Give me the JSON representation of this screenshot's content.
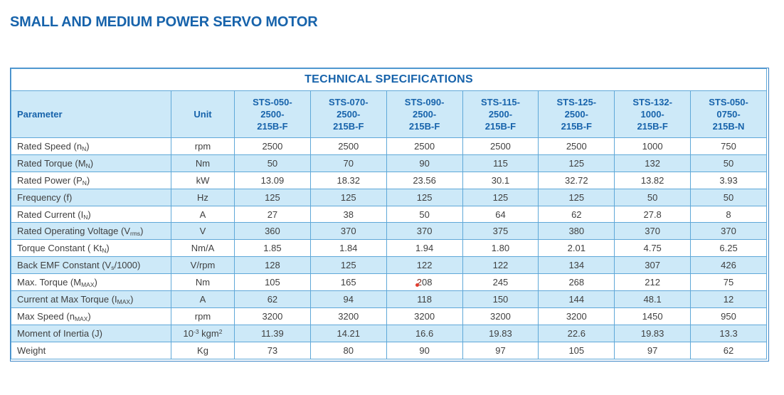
{
  "page_title": "SMALL AND MEDIUM POWER SERVO MOTOR",
  "colors": {
    "accent_blue": "#1763ab",
    "band_blue": "#cde9f8",
    "grid_blue": "#5fa8d8",
    "outer_border_blue": "#3d85c6",
    "body_text": "#3f3f3f",
    "red_mark": "#e23b2e"
  },
  "table": {
    "title": "TECHNICAL SPECIFICATIONS",
    "param_header": "Parameter",
    "unit_header": "Unit",
    "model_headers": [
      "STS-050-\n2500-\n215B-F",
      "STS-070-\n2500-\n215B-F",
      "STS-090-\n2500-\n215B-F",
      "STS-115-\n2500-\n215B-F",
      "STS-125-\n2500-\n215B-F",
      "STS-132-\n1000-\n215B-F",
      "STS-050-\n0750-\n215B-N"
    ],
    "rows": [
      {
        "param": "Rated Speed (n~N~)",
        "unit": "rpm",
        "values": [
          "2500",
          "2500",
          "2500",
          "2500",
          "2500",
          "1000",
          "750"
        ]
      },
      {
        "param": "Rated Torque (M~N~)",
        "unit": "Nm",
        "values": [
          "50",
          "70",
          "90",
          "115",
          "125",
          "132",
          "50"
        ]
      },
      {
        "param": "Rated Power (P~N~)",
        "unit": "kW",
        "values": [
          "13.09",
          "18.32",
          "23.56",
          "30.1",
          "32.72",
          "13.82",
          "3.93"
        ]
      },
      {
        "param": "Frequency (f)",
        "unit": "Hz",
        "values": [
          "125",
          "125",
          "125",
          "125",
          "125",
          "50",
          "50"
        ]
      },
      {
        "param": "Rated Current (I~N~)",
        "unit": "A",
        "values": [
          "27",
          "38",
          "50",
          "64",
          "62",
          "27.8",
          "8"
        ]
      },
      {
        "param": "Rated Operating Voltage (V~rms~)",
        "unit": "V",
        "values": [
          "360",
          "370",
          "370",
          "375",
          "380",
          "370",
          "370"
        ]
      },
      {
        "param": "Torque Constant ( Kt~N~)",
        "unit": "Nm/A",
        "values": [
          "1.85",
          "1.84",
          "1.94",
          "1.80",
          "2.01",
          "4.75",
          "6.25"
        ]
      },
      {
        "param": "Back EMF Constant (V~s~/1000)",
        "unit": "V/rpm",
        "values": [
          "128",
          "125",
          "122",
          "122",
          "134",
          "307",
          "426"
        ]
      },
      {
        "param": "Max. Torque (M~MAX~)",
        "unit": "Nm",
        "values": [
          "105",
          "165",
          "%2%08",
          "245",
          "268",
          "212",
          "75"
        ]
      },
      {
        "param": "Current at Max Torque (I~MAX~)",
        "unit": "A",
        "values": [
          "62",
          "94",
          "118",
          "150",
          "144",
          "48.1",
          "12"
        ]
      },
      {
        "param": "Max Speed (n~MAX~)",
        "unit": "rpm",
        "values": [
          "3200",
          "3200",
          "3200",
          "3200",
          "3200",
          "1450",
          "950"
        ]
      },
      {
        "param": "Moment of Inertia (J)",
        "unit": "10^-3^ kgm^2^",
        "values": [
          "11.39",
          "14.21",
          "16.6",
          "19.83",
          "22.6",
          "19.83",
          "13.3"
        ]
      },
      {
        "param": "Weight",
        "unit": "Kg",
        "values": [
          "73",
          "80",
          "90",
          "97",
          "105",
          "97",
          "62"
        ]
      }
    ]
  }
}
